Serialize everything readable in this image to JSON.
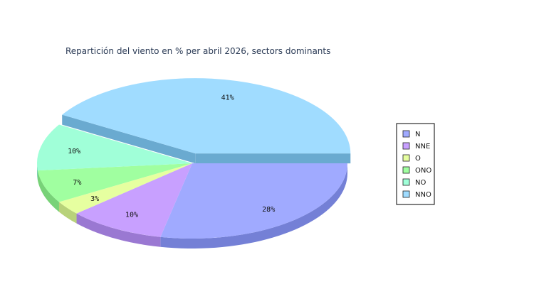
{
  "chart_data": {
    "type": "pie",
    "title": "Repartición del viento en % per abril 2026, sectors dominants",
    "slices": [
      {
        "label": "N",
        "value": 28,
        "display": "28%",
        "color": "#a0aaff",
        "side_color": "#7480d6"
      },
      {
        "label": "NNE",
        "value": 10,
        "display": "10%",
        "color": "#c8a0ff",
        "side_color": "#9a78d2"
      },
      {
        "label": "O",
        "value": 3,
        "display": "3%",
        "color": "#e6ffa0",
        "side_color": "#b8d27a"
      },
      {
        "label": "ONO",
        "value": 7,
        "display": "7%",
        "color": "#a0ffa0",
        "side_color": "#78d278"
      },
      {
        "label": "NO",
        "value": 10,
        "display": "10%",
        "color": "#a0ffd8",
        "side_color": "#78d2b0"
      },
      {
        "label": "NNO",
        "value": 41,
        "display": "41%",
        "color": "#a0dcff",
        "side_color": "#6aaad0",
        "exploded": true
      }
    ],
    "legend_position": "right"
  }
}
